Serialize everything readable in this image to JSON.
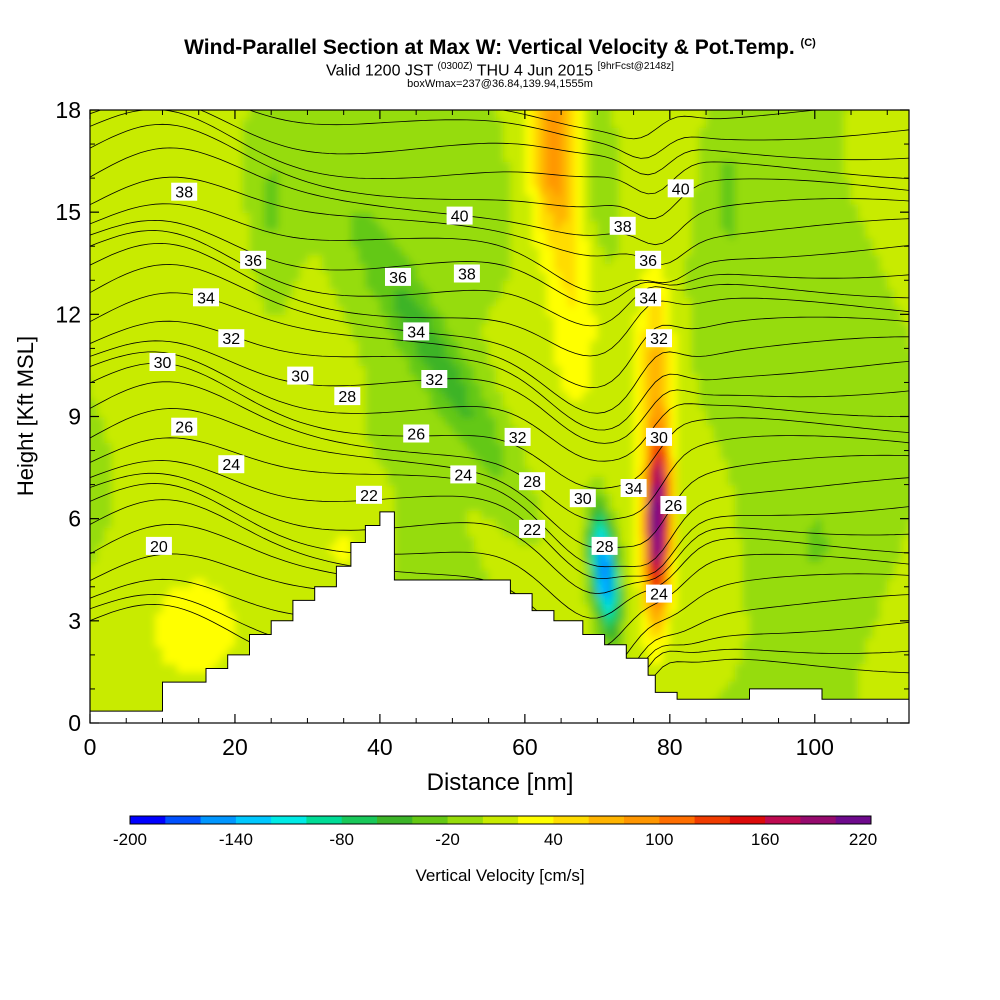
{
  "header": {
    "title": "Wind-Parallel Section at Max W: Vertical Velocity & Pot.Temp.",
    "copyright": "(C)",
    "valid_prefix": "Valid 1200 JST",
    "valid_utc": "(0300Z)",
    "valid_date": "THU 4 Jun 2015",
    "forecast_info": "[9hrFcst@2148z]",
    "box_info": "boxWmax=237@36.84,139.94,1555m"
  },
  "chart_data": {
    "type": "heatmap",
    "title": "Wind-Parallel Section at Max W: Vertical Velocity & Pot.Temp.",
    "xlabel": "Distance [nm]",
    "ylabel": "Height [Kft MSL]",
    "xlim": [
      0,
      113
    ],
    "ylim": [
      0,
      18
    ],
    "x_ticks": [
      "0",
      "20",
      "40",
      "60",
      "80",
      "100"
    ],
    "y_ticks": [
      "0",
      "3",
      "6",
      "9",
      "12",
      "15",
      "18"
    ],
    "colorbar": {
      "label": "Vertical Velocity [cm/s]",
      "tick_labels": [
        "-200",
        "-140",
        "-80",
        "-20",
        "40",
        "100",
        "160",
        "220"
      ],
      "colors": [
        "#0000ff",
        "#0050ff",
        "#0096ff",
        "#00c8ff",
        "#00ebe6",
        "#00dc96",
        "#19c85a",
        "#3cb428",
        "#64c814",
        "#96dc0a",
        "#c8eb00",
        "#ffff00",
        "#ffdc00",
        "#ffb400",
        "#ff9600",
        "#ff6e00",
        "#f03c00",
        "#dc0a0a",
        "#be0a50",
        "#960a6e",
        "#6e0a8c"
      ]
    },
    "velocity_features": [
      {
        "kind": "downdraft",
        "x": 71,
        "y": 4.5,
        "peak": -200
      },
      {
        "kind": "updraft",
        "x": 78,
        "y": 6,
        "peak": 237
      },
      {
        "kind": "downdraft",
        "x": 47,
        "y": 11,
        "peak": -60
      },
      {
        "kind": "updraft",
        "x": 64,
        "y": 17,
        "peak": 90
      }
    ],
    "terrain": [
      [
        0,
        0.35
      ],
      [
        10,
        0.35
      ],
      [
        10,
        1.2
      ],
      [
        16,
        1.2
      ],
      [
        16,
        1.6
      ],
      [
        19,
        1.6
      ],
      [
        19,
        2.0
      ],
      [
        22,
        2.0
      ],
      [
        22,
        2.6
      ],
      [
        25,
        2.6
      ],
      [
        25,
        3.0
      ],
      [
        28,
        3.0
      ],
      [
        28,
        3.6
      ],
      [
        31,
        3.6
      ],
      [
        31,
        4.0
      ],
      [
        34,
        4.0
      ],
      [
        34,
        4.6
      ],
      [
        36,
        4.6
      ],
      [
        36,
        5.3
      ],
      [
        38,
        5.3
      ],
      [
        38,
        5.8
      ],
      [
        40,
        5.8
      ],
      [
        40,
        6.2
      ],
      [
        42,
        6.2
      ],
      [
        42,
        4.2
      ],
      [
        58,
        4.2
      ],
      [
        58,
        3.8
      ],
      [
        61,
        3.8
      ],
      [
        61,
        3.3
      ],
      [
        64,
        3.3
      ],
      [
        64,
        3.0
      ],
      [
        68,
        3.0
      ],
      [
        68,
        2.6
      ],
      [
        71,
        2.6
      ],
      [
        71,
        2.3
      ],
      [
        74,
        2.3
      ],
      [
        74,
        1.9
      ],
      [
        77,
        1.9
      ],
      [
        77,
        1.4
      ],
      [
        78,
        1.4
      ],
      [
        78,
        0.9
      ],
      [
        81,
        0.9
      ],
      [
        81,
        0.7
      ],
      [
        91,
        0.7
      ],
      [
        91,
        1.0
      ],
      [
        101,
        1.0
      ],
      [
        101,
        0.7
      ],
      [
        113,
        0.7
      ]
    ],
    "isentrope_labels": [
      {
        "text": "38",
        "x": 13,
        "y": 15.6
      },
      {
        "text": "36",
        "x": 22.5,
        "y": 13.6
      },
      {
        "text": "34",
        "x": 16,
        "y": 12.5
      },
      {
        "text": "32",
        "x": 19.5,
        "y": 11.3
      },
      {
        "text": "30",
        "x": 10,
        "y": 10.6
      },
      {
        "text": "30",
        "x": 29,
        "y": 10.2
      },
      {
        "text": "28",
        "x": 35.5,
        "y": 9.6
      },
      {
        "text": "26",
        "x": 13,
        "y": 8.7
      },
      {
        "text": "24",
        "x": 19.5,
        "y": 7.6
      },
      {
        "text": "22",
        "x": 38.5,
        "y": 6.7
      },
      {
        "text": "20",
        "x": 9.5,
        "y": 5.2
      },
      {
        "text": "40",
        "x": 51,
        "y": 14.9
      },
      {
        "text": "36",
        "x": 42.5,
        "y": 13.1
      },
      {
        "text": "38",
        "x": 52,
        "y": 13.2
      },
      {
        "text": "34",
        "x": 45,
        "y": 11.5
      },
      {
        "text": "32",
        "x": 47.5,
        "y": 10.1
      },
      {
        "text": "26",
        "x": 45,
        "y": 8.5
      },
      {
        "text": "32",
        "x": 59,
        "y": 8.4
      },
      {
        "text": "24",
        "x": 51.5,
        "y": 7.3
      },
      {
        "text": "28",
        "x": 61,
        "y": 7.1
      },
      {
        "text": "30",
        "x": 68,
        "y": 6.6
      },
      {
        "text": "22",
        "x": 61,
        "y": 5.7
      },
      {
        "text": "28",
        "x": 71,
        "y": 5.2
      },
      {
        "text": "34",
        "x": 75,
        "y": 6.9
      },
      {
        "text": "30",
        "x": 78.5,
        "y": 8.4
      },
      {
        "text": "26",
        "x": 80.5,
        "y": 6.4
      },
      {
        "text": "24",
        "x": 78.5,
        "y": 3.8
      },
      {
        "text": "40",
        "x": 81.5,
        "y": 15.7
      },
      {
        "text": "38",
        "x": 73.5,
        "y": 14.6
      },
      {
        "text": "36",
        "x": 77,
        "y": 13.6
      },
      {
        "text": "34",
        "x": 77,
        "y": 12.5
      },
      {
        "text": "32",
        "x": 78.5,
        "y": 11.3
      }
    ]
  }
}
